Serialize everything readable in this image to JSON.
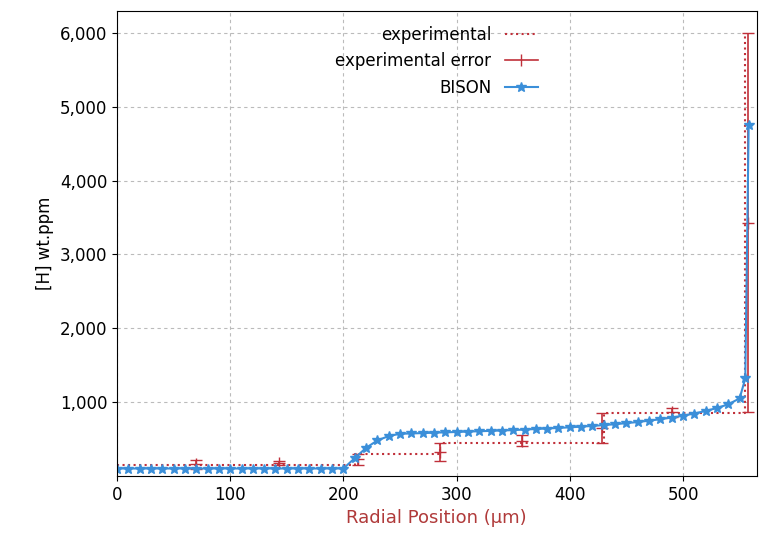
{
  "chart_data": {
    "type": "line",
    "x_label": "Radial Position (μm)",
    "y_label": "[H] wt.ppm",
    "xlim": [
      0,
      565
    ],
    "ylim": [
      0,
      6300
    ],
    "xticks": [
      0,
      100,
      200,
      300,
      400,
      500
    ],
    "yticks": [
      {
        "value": 1000,
        "label": "1,000"
      },
      {
        "value": 2000,
        "label": "2,000"
      },
      {
        "value": 3000,
        "label": "3,000"
      },
      {
        "value": 4000,
        "label": "4,000"
      },
      {
        "value": 5000,
        "label": "5,000"
      },
      {
        "value": 6000,
        "label": "6,000"
      }
    ],
    "grid": true,
    "legend": "upper center",
    "series": [
      {
        "name": "experimental",
        "type": "line",
        "color": "#c0303a",
        "line_style": "dotted",
        "x": [
          0,
          210,
          210,
          285,
          285,
          430,
          430,
          555,
          555
        ],
        "values": [
          150,
          150,
          300,
          300,
          450,
          450,
          850,
          850,
          6000
        ]
      },
      {
        "name": "experimental error",
        "type": "errorbar",
        "color": "#c0303a",
        "marker": "+",
        "x": [
          70,
          143,
          213,
          285,
          358,
          428,
          490,
          557
        ],
        "values": [
          160,
          175,
          225,
          325,
          475,
          650,
          860,
          3430
        ],
        "error": [
          60,
          25,
          75,
          125,
          75,
          200,
          60,
          2570
        ]
      },
      {
        "name": "BISON",
        "type": "line",
        "color": "#3b8fd9",
        "marker": "*",
        "line_style": "solid",
        "x": [
          0,
          10,
          20,
          30,
          40,
          50,
          60,
          70,
          80,
          90,
          100,
          110,
          120,
          130,
          140,
          150,
          160,
          170,
          180,
          190,
          200,
          210,
          220,
          230,
          240,
          250,
          260,
          270,
          280,
          290,
          300,
          310,
          320,
          330,
          340,
          350,
          360,
          370,
          380,
          390,
          400,
          410,
          420,
          430,
          440,
          450,
          460,
          470,
          480,
          490,
          500,
          510,
          520,
          530,
          540,
          550,
          555,
          558
        ],
        "values": [
          100,
          100,
          100,
          100,
          100,
          100,
          100,
          100,
          100,
          100,
          100,
          100,
          100,
          100,
          100,
          100,
          100,
          100,
          100,
          100,
          100,
          240,
          380,
          480,
          540,
          570,
          575,
          580,
          585,
          590,
          595,
          600,
          605,
          610,
          615,
          620,
          628,
          635,
          642,
          650,
          658,
          667,
          677,
          688,
          700,
          715,
          730,
          748,
          768,
          790,
          815,
          845,
          880,
          920,
          970,
          1050,
          1320,
          4750
        ]
      }
    ]
  }
}
